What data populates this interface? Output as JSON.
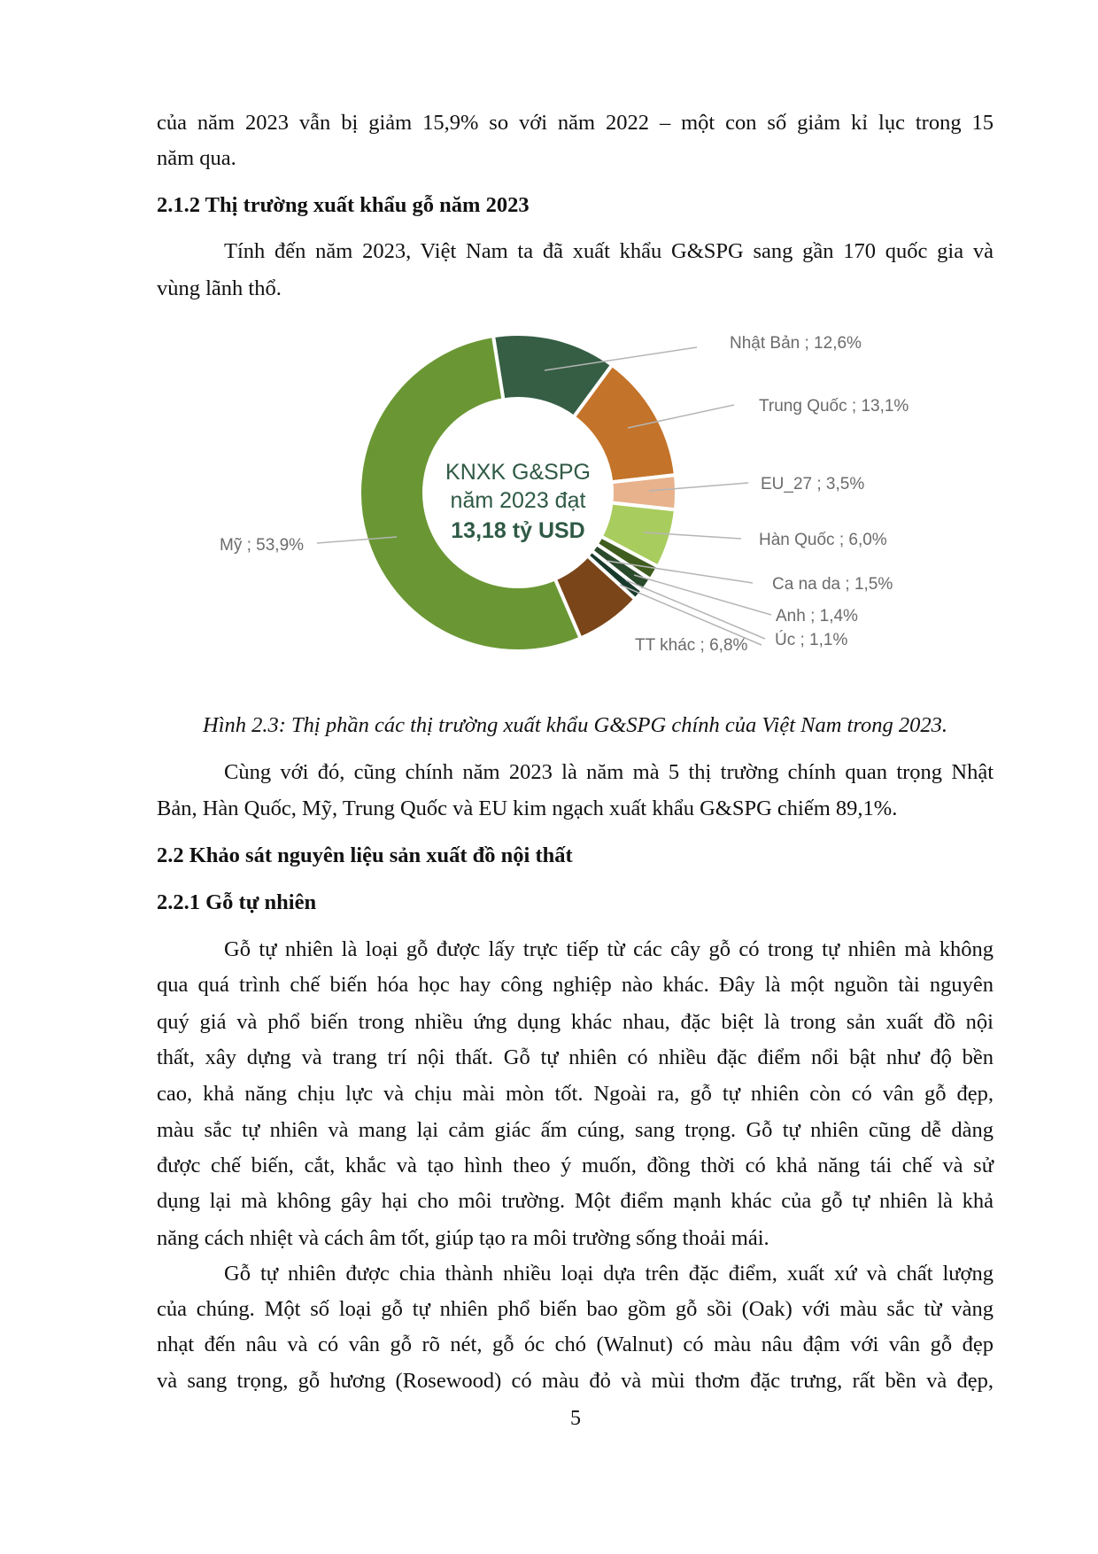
{
  "page": {
    "para_intro": [
      "của năm 2023 vẫn bị giảm 15,9% so với năm 2022 – một con số giảm kỉ lục trong 15",
      "năm qua."
    ],
    "heading_212": "2.1.2 Thị trường xuất khẩu gỗ năm 2023",
    "para_212": [
      "Tính đến năm 2023, Việt Nam ta đã xuất khẩu G&SPG sang gần 170 quốc gia và",
      "vùng lãnh thổ."
    ],
    "caption": "Hình 2.3: Thị phần các thị trường xuất khẩu G&SPG chính của Việt Nam trong 2023.",
    "para_after_fig": [
      "Cùng với đó, cũng chính năm 2023 là năm mà 5 thị trường chính quan trọng Nhật",
      "Bản, Hàn Quốc, Mỹ, Trung Quốc và EU kim ngạch xuất khẩu G&SPG chiếm 89,1%."
    ],
    "heading_22": "2.2 Khảo sát nguyên liệu sản xuất đồ nội thất",
    "heading_221": "2.2.1 Gỗ tự nhiên",
    "para_221a": [
      "Gỗ tự nhiên là loại gỗ được lấy trực tiếp từ các cây gỗ có trong tự nhiên mà không",
      "qua quá trình chế biến hóa học hay công nghiệp nào khác. Đây là một nguồn tài nguyên",
      "quý giá và phổ biến trong nhiều ứng dụng khác nhau, đặc biệt là trong sản xuất đồ nội",
      "thất, xây dựng và trang trí nội thất. Gỗ tự nhiên có nhiều đặc điểm nổi bật như độ bền",
      "cao, khả năng chịu lực và chịu mài mòn tốt. Ngoài ra, gỗ tự nhiên còn có vân gỗ đẹp,",
      "màu sắc tự nhiên và mang lại cảm giác ấm cúng, sang trọng. Gỗ tự nhiên cũng dễ dàng",
      "được chế biến, cắt, khắc và tạo hình theo ý muốn, đồng thời có khả năng tái chế và sử",
      "dụng lại mà không gây hại cho môi trường. Một điểm mạnh khác của gỗ tự nhiên là khả",
      "năng cách nhiệt và cách âm tốt, giúp tạo ra môi trường sống thoải mái."
    ],
    "para_221b": [
      "Gỗ tự nhiên được chia thành nhiều loại dựa trên đặc điểm, xuất xứ và chất lượng",
      "của chúng. Một số loại gỗ tự nhiên phổ biến bao gồm gỗ sồi (Oak) với màu sắc từ vàng",
      "nhạt đến nâu và có vân gỗ rõ nét, gỗ óc chó (Walnut) có màu nâu đậm với vân gỗ đẹp",
      "và sang trọng, gỗ hương (Rosewood) có màu đỏ và mùi thơm đặc trưng, rất bền và đẹp,"
    ],
    "page_number": "5"
  },
  "chart_data": {
    "type": "pie",
    "donut": true,
    "center_text": [
      "KNXK G&SPG",
      "năm 2023 đạt",
      "13,18 tỷ USD"
    ],
    "categories": [
      "Nhật Bản",
      "Trung Quốc",
      "EU_27",
      "Hàn Quốc",
      "Ca na da",
      "Anh",
      "Úc",
      "TT khác",
      "Mỹ"
    ],
    "values": [
      12.6,
      13.1,
      3.5,
      6.0,
      1.5,
      1.4,
      1.1,
      6.8,
      53.9
    ],
    "labels": [
      "Nhật Bản ; 12,6%",
      "Trung Quốc ; 13,1%",
      "EU_27 ; 3,5%",
      "Hàn Quốc ; 6,0%",
      "Ca na da ; 1,5%",
      "Anh ; 1,4%",
      "Úc ; 1,1%",
      "TT khác ; 6,8%",
      "Mỹ ; 53,9%"
    ],
    "colors": [
      "#355e45",
      "#c4732a",
      "#e8b28c",
      "#a9cc5e",
      "#3f5d1f",
      "#2a4a2c",
      "#173a2c",
      "#7a4518",
      "#6a9734"
    ],
    "center_color": "#2f5a45",
    "label_color": "#6b6b6b"
  }
}
